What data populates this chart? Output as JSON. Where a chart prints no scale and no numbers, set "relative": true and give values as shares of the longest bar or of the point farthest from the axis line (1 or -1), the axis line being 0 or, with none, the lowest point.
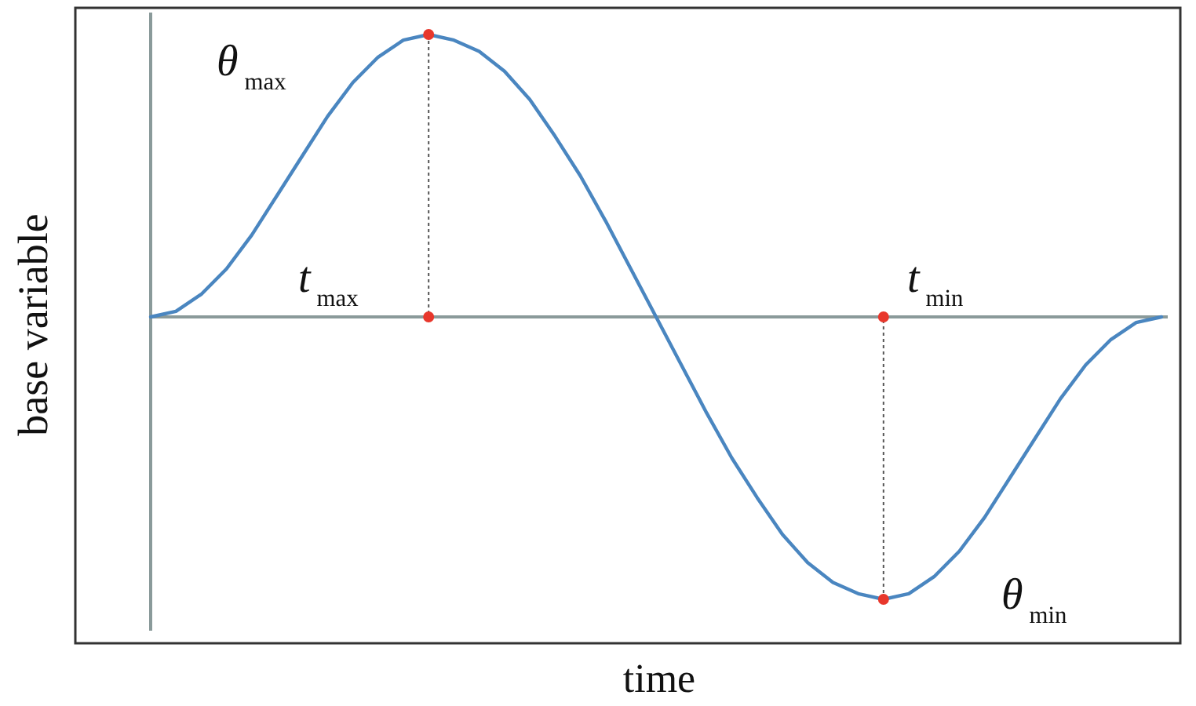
{
  "chart_data": {
    "type": "line",
    "relative": true,
    "xlabel": "time",
    "ylabel": "base variable",
    "categories": [
      null,
      null,
      null,
      null,
      null,
      null,
      null,
      null,
      null,
      null,
      null,
      null,
      null,
      null,
      null,
      null,
      null,
      null,
      null,
      null,
      null,
      null,
      null,
      null,
      null,
      null,
      null,
      null,
      null,
      null,
      null,
      null,
      null,
      null,
      null,
      null,
      null,
      null,
      null,
      null,
      null
    ],
    "series": [
      {
        "color": "#4a86c0",
        "values": [
          0,
          0.02,
          0.08,
          0.17,
          0.29,
          0.43,
          0.57,
          0.71,
          0.83,
          0.92,
          0.98,
          1,
          0.98,
          0.94,
          0.87,
          0.77,
          0.64,
          0.5,
          0.34,
          0.17,
          0,
          -0.17,
          -0.34,
          -0.5,
          -0.64,
          -0.77,
          -0.87,
          -0.94,
          -0.98,
          -1,
          -0.98,
          -0.92,
          -0.83,
          -0.71,
          -0.57,
          -0.43,
          -0.29,
          -0.17,
          -0.08,
          -0.02,
          0
        ]
      }
    ],
    "annotations": [
      "θ$_{max}$",
      "t$_{max}$",
      "t$_{min}$",
      "θ$_{min}$"
    ]
  }
}
